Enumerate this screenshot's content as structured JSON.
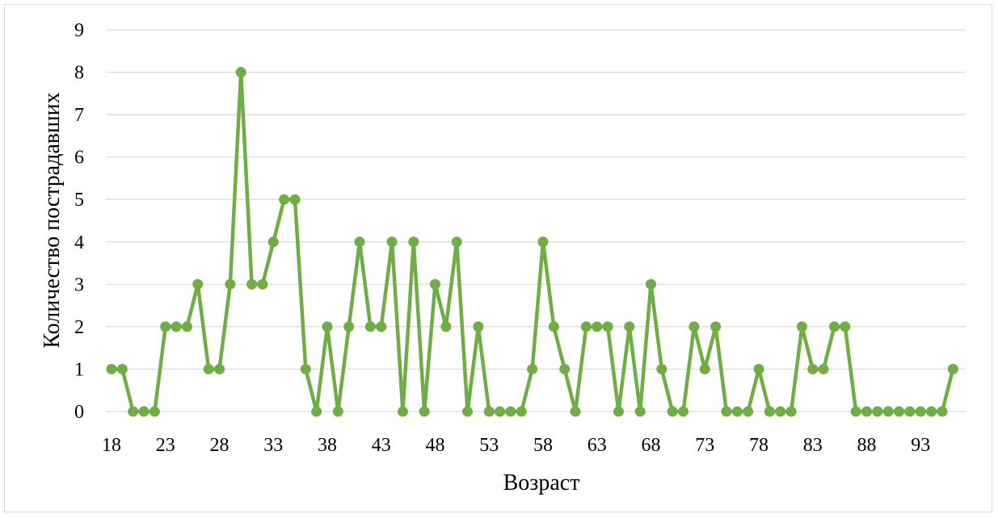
{
  "chart_data": {
    "type": "line",
    "title": "",
    "xlabel": "Возраст",
    "ylabel": "Количество пострадавших",
    "x": [
      18,
      19,
      20,
      21,
      22,
      23,
      24,
      25,
      26,
      27,
      28,
      29,
      30,
      31,
      32,
      33,
      34,
      35,
      36,
      37,
      38,
      39,
      40,
      41,
      42,
      43,
      44,
      45,
      46,
      47,
      48,
      49,
      50,
      51,
      52,
      53,
      54,
      55,
      56,
      57,
      58,
      59,
      60,
      61,
      62,
      63,
      64,
      65,
      66,
      67,
      68,
      69,
      70,
      71,
      72,
      73,
      74,
      75,
      76,
      77,
      78,
      79,
      80,
      81,
      82,
      83,
      84,
      85,
      86,
      87,
      88,
      89,
      90,
      91,
      92,
      93,
      94,
      95,
      96
    ],
    "series": [
      {
        "values": [
          1,
          1,
          0,
          0,
          0,
          2,
          2,
          2,
          3,
          1,
          1,
          3,
          8,
          3,
          3,
          4,
          5,
          5,
          1,
          0,
          2,
          0,
          2,
          4,
          2,
          2,
          4,
          0,
          4,
          0,
          3,
          2,
          4,
          0,
          2,
          0,
          0,
          0,
          0,
          1,
          4,
          2,
          1,
          0,
          2,
          2,
          2,
          0,
          2,
          0,
          3,
          1,
          0,
          0,
          2,
          1,
          2,
          0,
          0,
          0,
          1,
          0,
          0,
          0,
          2,
          1,
          1,
          2,
          2,
          0,
          0,
          0,
          0,
          0,
          0,
          0,
          0,
          0,
          1
        ]
      }
    ],
    "x_tick_labels": [
      "18",
      "23",
      "28",
      "33",
      "38",
      "43",
      "48",
      "53",
      "58",
      "63",
      "68",
      "73",
      "78",
      "83",
      "88",
      "93"
    ],
    "y_tick_labels": [
      "0",
      "1",
      "2",
      "3",
      "4",
      "5",
      "6",
      "7",
      "8",
      "9"
    ],
    "ylim": [
      0,
      9
    ],
    "grid": true,
    "legend": "none",
    "colors": {
      "series": "#70ad47",
      "grid": "#d9d9d9",
      "frame": "#d9d9d9"
    }
  }
}
